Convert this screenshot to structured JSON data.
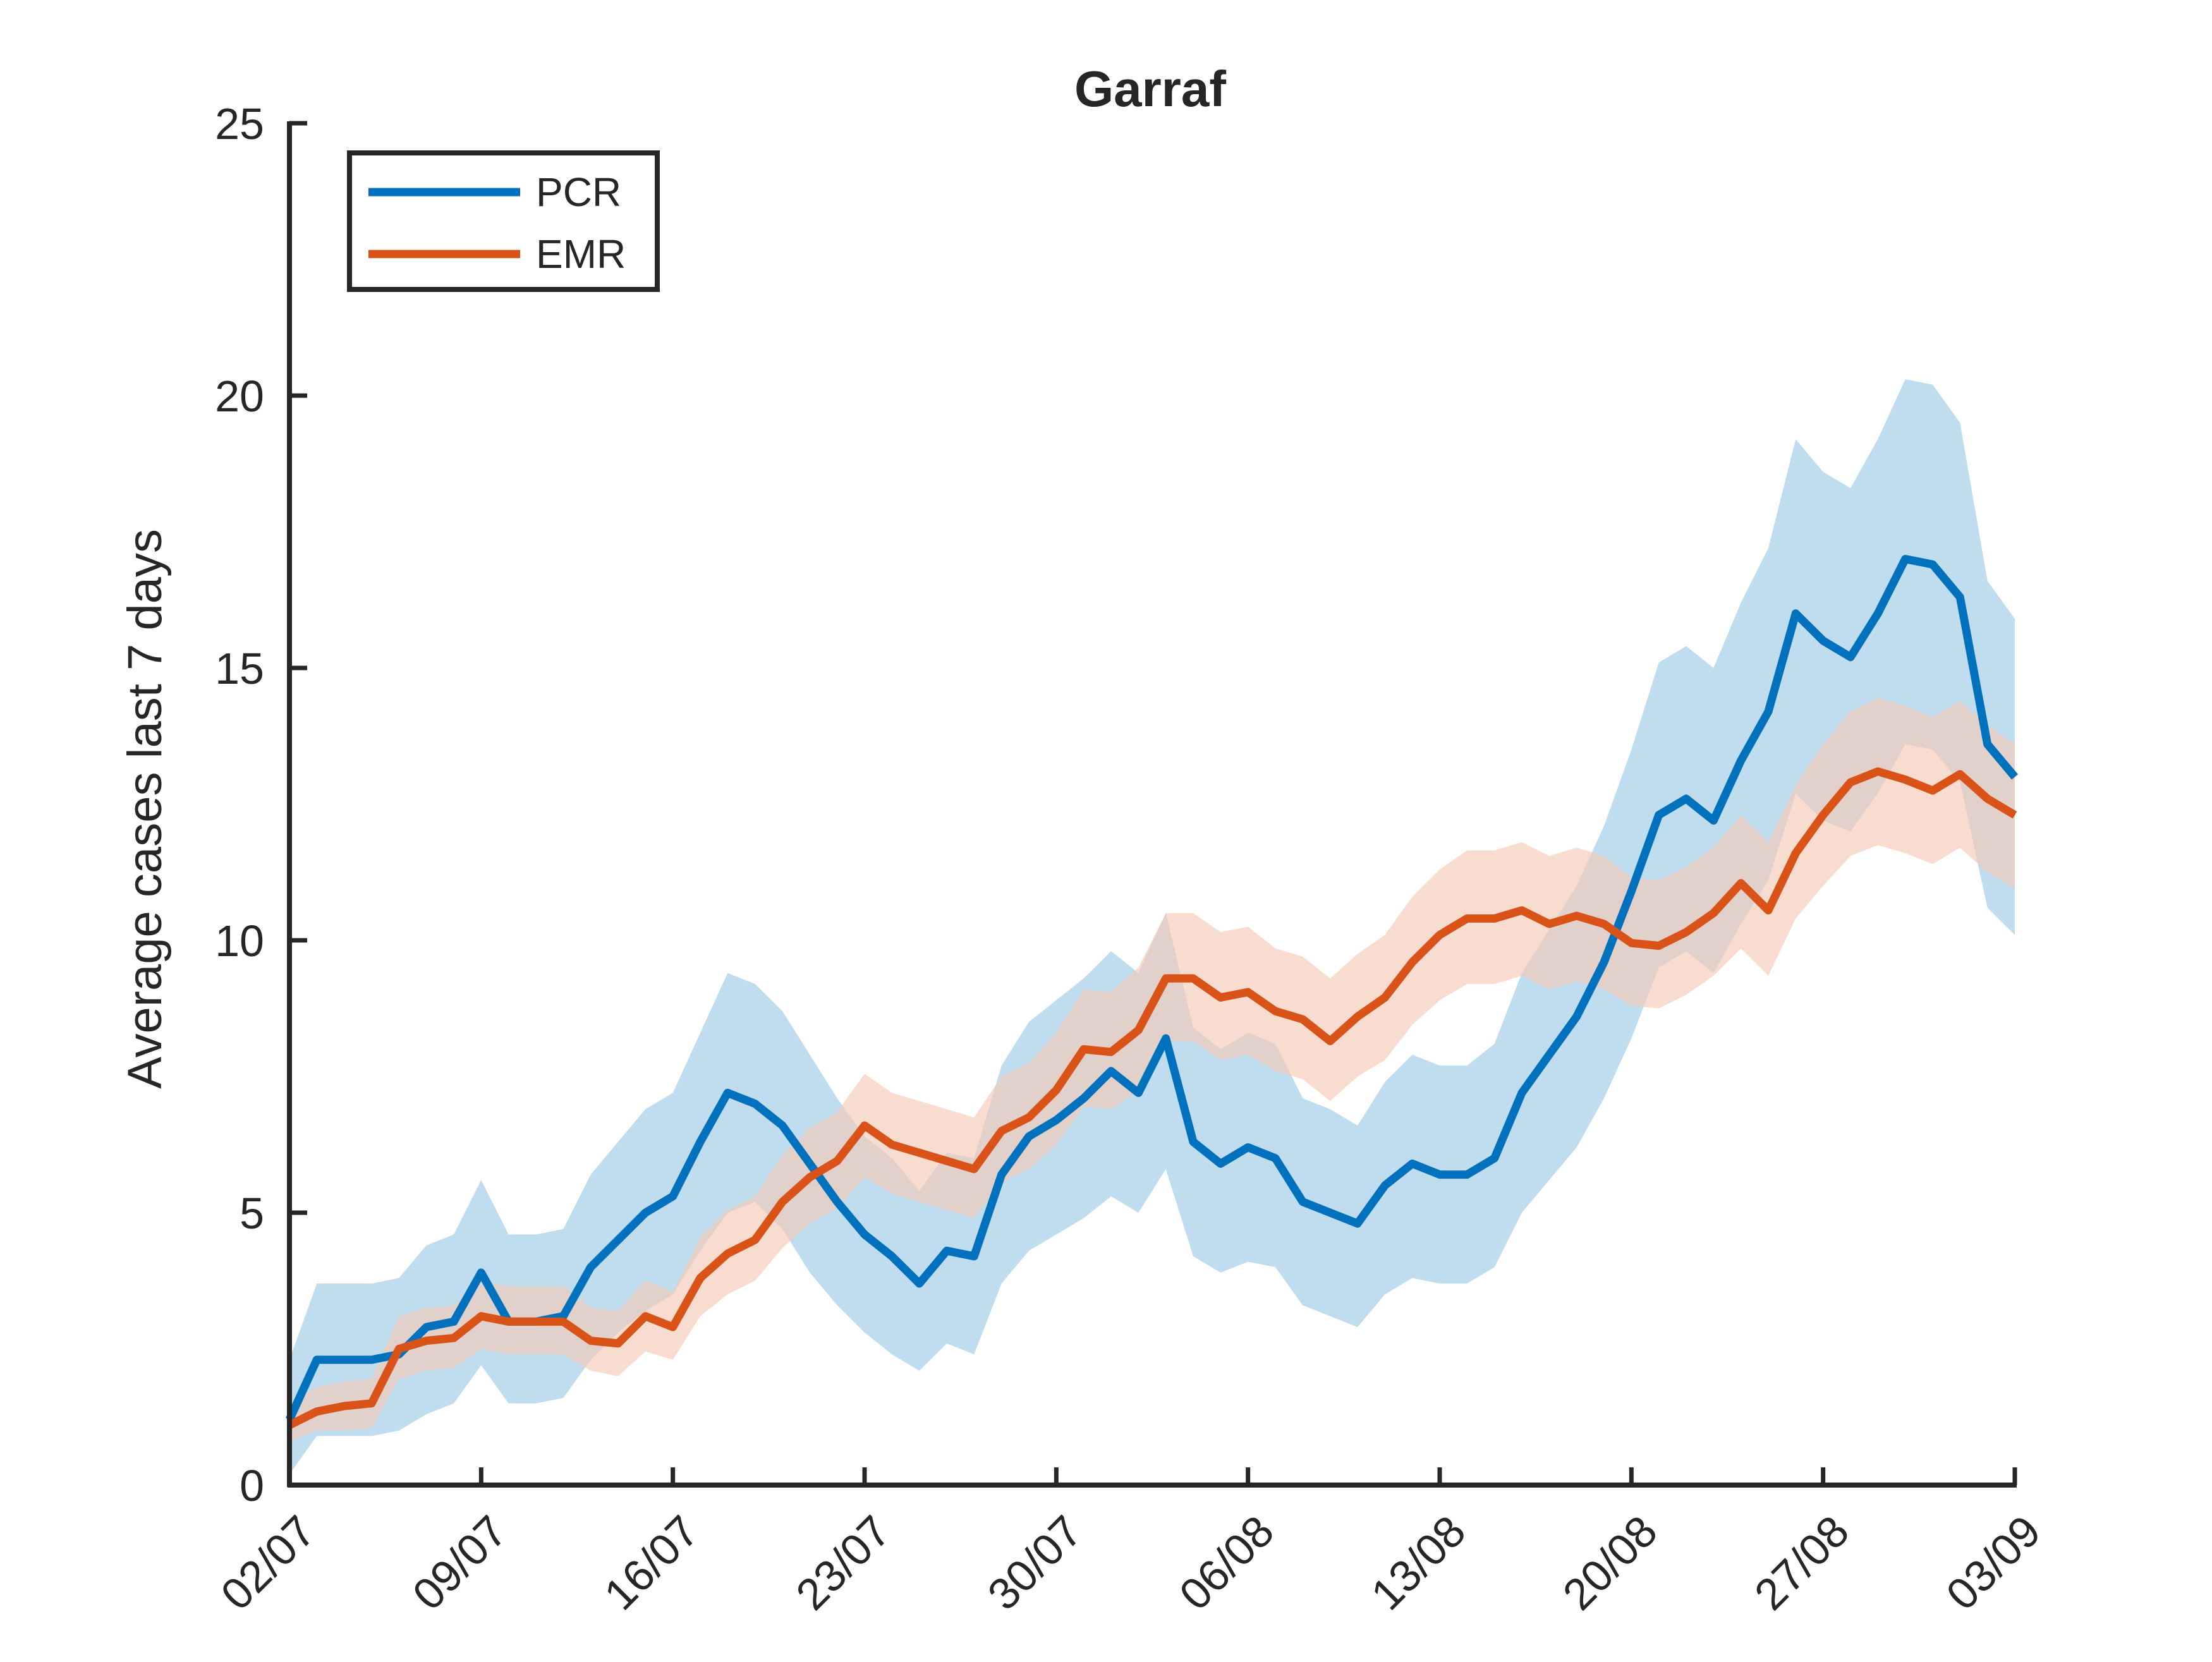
{
  "chart_data": {
    "type": "line",
    "title": "Garraf",
    "ylabel": "Average cases last 7 days",
    "xlabel": "",
    "ylim": [
      0,
      25
    ],
    "yticks": [
      0,
      5,
      10,
      15,
      20,
      25
    ],
    "xticks": [
      "02/07",
      "09/07",
      "16/07",
      "23/07",
      "30/07",
      "06/08",
      "13/08",
      "20/08",
      "27/08",
      "03/09"
    ],
    "grid": false,
    "legend_position": "top-left",
    "x": [
      "02/07",
      "03/07",
      "04/07",
      "05/07",
      "06/07",
      "07/07",
      "08/07",
      "09/07",
      "10/07",
      "11/07",
      "12/07",
      "13/07",
      "14/07",
      "15/07",
      "16/07",
      "17/07",
      "18/07",
      "19/07",
      "20/07",
      "21/07",
      "22/07",
      "23/07",
      "24/07",
      "25/07",
      "26/07",
      "27/07",
      "28/07",
      "29/07",
      "30/07",
      "31/07",
      "01/08",
      "02/08",
      "03/08",
      "04/08",
      "05/08",
      "06/08",
      "07/08",
      "08/08",
      "09/08",
      "10/08",
      "11/08",
      "12/08",
      "13/08",
      "14/08",
      "15/08",
      "16/08",
      "17/08",
      "18/08",
      "19/08",
      "20/08",
      "21/08",
      "22/08",
      "23/08",
      "24/08",
      "25/08",
      "26/08",
      "27/08",
      "28/08",
      "29/08",
      "30/08",
      "31/08",
      "01/09",
      "02/09",
      "03/09"
    ],
    "series": [
      {
        "name": "PCR",
        "color": "#0072BD",
        "band_color": "#9ECAE6",
        "values": [
          1.2,
          2.3,
          2.3,
          2.3,
          2.4,
          2.9,
          3.0,
          3.9,
          3.0,
          3.0,
          3.1,
          4.0,
          4.5,
          5.0,
          5.3,
          6.3,
          7.2,
          7.0,
          6.6,
          5.9,
          5.2,
          4.6,
          4.2,
          3.7,
          4.3,
          4.2,
          5.7,
          6.4,
          6.7,
          7.1,
          7.6,
          7.2,
          8.2,
          6.3,
          5.9,
          6.2,
          6.0,
          5.2,
          5.0,
          4.8,
          5.5,
          5.9,
          5.7,
          5.7,
          6.0,
          7.2,
          7.9,
          8.6,
          9.6,
          10.9,
          12.3,
          12.6,
          12.2,
          13.3,
          14.2,
          16.0,
          15.5,
          15.2,
          16.0,
          17.0,
          16.9,
          16.3,
          13.6,
          13.0
        ],
        "lower": [
          0.2,
          0.9,
          0.9,
          0.9,
          1.0,
          1.3,
          1.5,
          2.2,
          1.5,
          1.5,
          1.6,
          2.3,
          2.8,
          3.2,
          3.5,
          4.3,
          5.0,
          5.2,
          4.7,
          3.9,
          3.3,
          2.8,
          2.4,
          2.1,
          2.6,
          2.4,
          3.7,
          4.3,
          4.6,
          4.9,
          5.3,
          5.0,
          5.8,
          4.2,
          3.9,
          4.1,
          4.0,
          3.3,
          3.1,
          2.9,
          3.5,
          3.8,
          3.7,
          3.7,
          4.0,
          5.0,
          5.6,
          6.2,
          7.1,
          8.2,
          9.5,
          9.8,
          9.4,
          10.3,
          11.1,
          12.7,
          12.2,
          12.0,
          12.7,
          13.6,
          13.5,
          12.9,
          10.6,
          10.1
        ],
        "upper": [
          2.3,
          3.7,
          3.7,
          3.7,
          3.8,
          4.4,
          4.6,
          5.6,
          4.6,
          4.6,
          4.7,
          5.7,
          6.3,
          6.9,
          7.2,
          8.3,
          9.4,
          9.2,
          8.7,
          7.9,
          7.1,
          6.4,
          6.0,
          5.4,
          6.1,
          6.0,
          7.7,
          8.5,
          8.9,
          9.3,
          9.8,
          9.4,
          10.5,
          8.4,
          8.0,
          8.3,
          8.1,
          7.1,
          6.9,
          6.6,
          7.4,
          7.9,
          7.7,
          7.7,
          8.1,
          9.4,
          10.2,
          11.0,
          12.1,
          13.5,
          15.1,
          15.4,
          15.0,
          16.2,
          17.2,
          19.2,
          18.6,
          18.3,
          19.2,
          20.3,
          20.2,
          19.5,
          16.6,
          15.9
        ]
      },
      {
        "name": "EMR",
        "color": "#D95319",
        "band_color": "#F5C9B5",
        "values": [
          1.1,
          1.35,
          1.45,
          1.5,
          2.5,
          2.65,
          2.7,
          3.1,
          3.0,
          3.0,
          3.0,
          2.65,
          2.6,
          3.1,
          2.9,
          3.8,
          4.25,
          4.5,
          5.2,
          5.65,
          5.95,
          6.6,
          6.25,
          6.1,
          5.95,
          5.8,
          6.5,
          6.75,
          7.25,
          8.0,
          7.95,
          8.35,
          9.3,
          9.3,
          8.95,
          9.05,
          8.7,
          8.55,
          8.15,
          8.6,
          8.95,
          9.6,
          10.1,
          10.4,
          10.4,
          10.55,
          10.3,
          10.45,
          10.3,
          9.95,
          9.9,
          10.15,
          10.5,
          11.05,
          10.55,
          11.6,
          12.3,
          12.9,
          13.1,
          12.95,
          12.75,
          13.05,
          12.6,
          12.3
        ],
        "lower": [
          0.8,
          1.0,
          1.0,
          1.05,
          1.95,
          2.1,
          2.15,
          2.5,
          2.4,
          2.4,
          2.4,
          2.1,
          2.0,
          2.45,
          2.3,
          3.1,
          3.5,
          3.75,
          4.35,
          4.8,
          5.1,
          5.65,
          5.35,
          5.2,
          5.05,
          4.9,
          5.55,
          5.8,
          6.25,
          6.95,
          6.9,
          7.25,
          8.15,
          8.15,
          7.8,
          7.9,
          7.6,
          7.45,
          7.05,
          7.5,
          7.8,
          8.45,
          8.9,
          9.2,
          9.2,
          9.35,
          9.1,
          9.25,
          9.1,
          8.8,
          8.75,
          9.0,
          9.35,
          9.85,
          9.35,
          10.4,
          11.0,
          11.55,
          11.75,
          11.6,
          11.4,
          11.7,
          11.25,
          10.95
        ],
        "upper": [
          1.5,
          1.8,
          1.9,
          1.95,
          3.1,
          3.25,
          3.3,
          3.75,
          3.65,
          3.65,
          3.65,
          3.25,
          3.2,
          3.75,
          3.55,
          4.55,
          5.05,
          5.3,
          6.05,
          6.55,
          6.85,
          7.55,
          7.2,
          7.05,
          6.9,
          6.75,
          7.5,
          7.75,
          8.3,
          9.1,
          9.05,
          9.5,
          10.5,
          10.5,
          10.15,
          10.25,
          9.85,
          9.7,
          9.3,
          9.75,
          10.1,
          10.8,
          11.3,
          11.65,
          11.65,
          11.8,
          11.55,
          11.7,
          11.55,
          11.15,
          11.1,
          11.35,
          11.7,
          12.3,
          11.8,
          12.85,
          13.6,
          14.2,
          14.45,
          14.3,
          14.1,
          14.4,
          13.95,
          13.6
        ]
      }
    ]
  }
}
